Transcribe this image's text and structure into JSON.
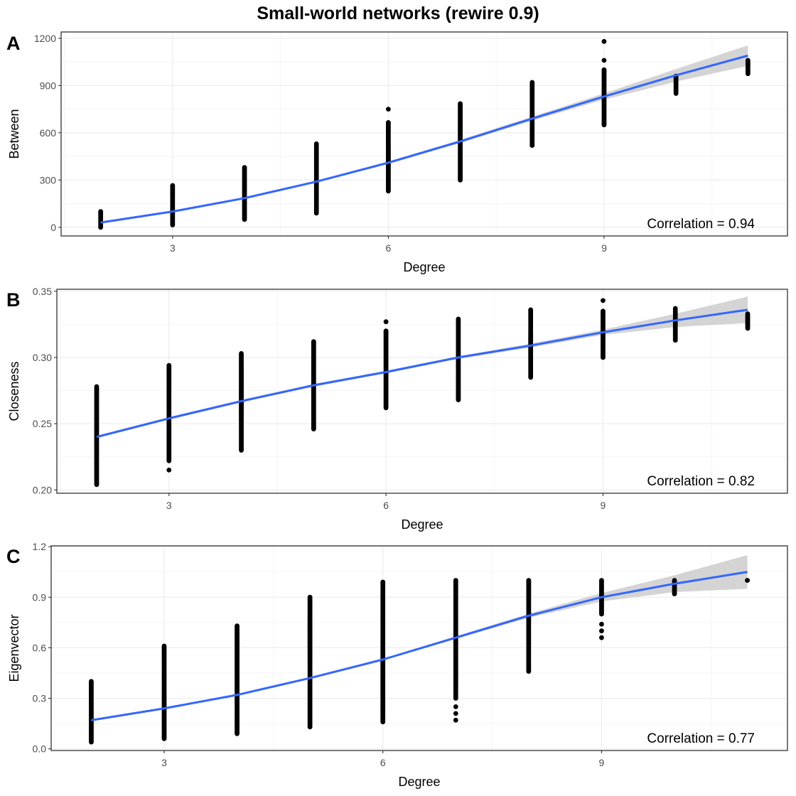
{
  "title": "Small-world networks (rewire 0.9)",
  "chart_data": [
    {
      "type": "scatter",
      "panel_label": "A",
      "xlabel": "Degree",
      "ylabel": "Between",
      "xlim": [
        1.45,
        11.55
      ],
      "ylim": [
        -55,
        1240
      ],
      "x_ticks": [
        3,
        6,
        9
      ],
      "x_tick_labels": [
        "3",
        "6",
        "9"
      ],
      "y_ticks": [
        0,
        300,
        600,
        900,
        1200
      ],
      "y_tick_labels": [
        "0",
        "300",
        "600",
        "900",
        "1200"
      ],
      "grid": true,
      "annotation": "Correlation = 0.94",
      "point_color": "#000000",
      "points": [
        {
          "x": 2,
          "min": 0,
          "max": 100,
          "extra": []
        },
        {
          "x": 3,
          "min": 15,
          "max": 265,
          "extra": []
        },
        {
          "x": 4,
          "min": 50,
          "max": 380,
          "extra": []
        },
        {
          "x": 5,
          "min": 90,
          "max": 530,
          "extra": []
        },
        {
          "x": 6,
          "min": 230,
          "max": 665,
          "extra": [
            750
          ]
        },
        {
          "x": 7,
          "min": 300,
          "max": 785,
          "extra": []
        },
        {
          "x": 8,
          "min": 520,
          "max": 920,
          "extra": []
        },
        {
          "x": 9,
          "min": 650,
          "max": 1000,
          "extra": [
            1060,
            1180
          ]
        },
        {
          "x": 10,
          "min": 850,
          "max": 960,
          "extra": [
            920
          ]
        },
        {
          "x": 11,
          "min": 975,
          "max": 1060,
          "extra": []
        }
      ],
      "fit": {
        "color": "#3366ff",
        "band_color": "#cccccc",
        "x": [
          2,
          3,
          4,
          5,
          6,
          7,
          8,
          9,
          10,
          11
        ],
        "y": [
          30,
          100,
          185,
          290,
          410,
          545,
          690,
          830,
          965,
          1090
        ],
        "band": [
          3,
          4,
          5,
          6,
          8,
          10,
          13,
          20,
          40,
          65
        ]
      }
    },
    {
      "type": "scatter",
      "panel_label": "B",
      "xlabel": "Degree",
      "ylabel": "Closeness",
      "xlim": [
        1.45,
        11.55
      ],
      "ylim": [
        0.1975,
        0.3515
      ],
      "x_ticks": [
        3,
        6,
        9
      ],
      "x_tick_labels": [
        "3",
        "6",
        "9"
      ],
      "y_ticks": [
        0.2,
        0.25,
        0.3,
        0.35
      ],
      "y_tick_labels": [
        "0.20",
        "0.25",
        "0.30",
        "0.35"
      ],
      "grid": true,
      "annotation": "Correlation = 0.82",
      "point_color": "#000000",
      "points": [
        {
          "x": 2,
          "min": 0.204,
          "max": 0.278,
          "extra": []
        },
        {
          "x": 3,
          "min": 0.222,
          "max": 0.294,
          "extra": [
            0.215
          ]
        },
        {
          "x": 4,
          "min": 0.23,
          "max": 0.303,
          "extra": []
        },
        {
          "x": 5,
          "min": 0.246,
          "max": 0.312,
          "extra": []
        },
        {
          "x": 6,
          "min": 0.262,
          "max": 0.32,
          "extra": [
            0.327
          ]
        },
        {
          "x": 7,
          "min": 0.268,
          "max": 0.329,
          "extra": []
        },
        {
          "x": 8,
          "min": 0.285,
          "max": 0.336,
          "extra": []
        },
        {
          "x": 9,
          "min": 0.3,
          "max": 0.335,
          "extra": [
            0.343
          ]
        },
        {
          "x": 10,
          "min": 0.313,
          "max": 0.337,
          "extra": [
            0.329
          ]
        },
        {
          "x": 11,
          "min": 0.322,
          "max": 0.333,
          "extra": []
        }
      ],
      "fit": {
        "color": "#3366ff",
        "band_color": "#cccccc",
        "x": [
          2,
          3,
          4,
          5,
          6,
          7,
          8,
          9,
          10,
          11
        ],
        "y": [
          0.24,
          0.254,
          0.267,
          0.279,
          0.289,
          0.3,
          0.309,
          0.319,
          0.328,
          0.336
        ],
        "band": [
          0.001,
          0.001,
          0.001,
          0.001,
          0.001,
          0.001,
          0.0015,
          0.002,
          0.005,
          0.01
        ]
      }
    },
    {
      "type": "scatter",
      "panel_label": "C",
      "xlabel": "Degree",
      "ylabel": "Eigenvector",
      "xlim": [
        1.45,
        11.55
      ],
      "ylim": [
        -0.01,
        1.205
      ],
      "x_ticks": [
        3,
        6,
        9
      ],
      "x_tick_labels": [
        "3",
        "6",
        "9"
      ],
      "y_ticks": [
        0.0,
        0.3,
        0.6,
        0.9,
        1.2
      ],
      "y_tick_labels": [
        "0.0",
        "0.3",
        "0.6",
        "0.9",
        "1.2"
      ],
      "grid": true,
      "annotation": "Correlation = 0.77",
      "point_color": "#000000",
      "points": [
        {
          "x": 2,
          "min": 0.04,
          "max": 0.4,
          "extra": []
        },
        {
          "x": 3,
          "min": 0.06,
          "max": 0.61,
          "extra": []
        },
        {
          "x": 4,
          "min": 0.09,
          "max": 0.73,
          "extra": []
        },
        {
          "x": 5,
          "min": 0.13,
          "max": 0.9,
          "extra": []
        },
        {
          "x": 6,
          "min": 0.16,
          "max": 0.99,
          "extra": []
        },
        {
          "x": 7,
          "min": 0.3,
          "max": 1.0,
          "extra": [
            0.17,
            0.21,
            0.25
          ]
        },
        {
          "x": 8,
          "min": 0.46,
          "max": 1.0,
          "extra": []
        },
        {
          "x": 9,
          "min": 0.8,
          "max": 1.0,
          "extra": [
            0.66,
            0.7,
            0.74
          ]
        },
        {
          "x": 10,
          "min": 0.92,
          "max": 1.0,
          "extra": []
        },
        {
          "x": 11,
          "min": 1.0,
          "max": 1.0,
          "extra": []
        }
      ],
      "fit": {
        "color": "#3366ff",
        "band_color": "#cccccc",
        "x": [
          2,
          3,
          4,
          5,
          6,
          7,
          8,
          9,
          10,
          11
        ],
        "y": [
          0.17,
          0.24,
          0.32,
          0.42,
          0.53,
          0.66,
          0.79,
          0.9,
          0.98,
          1.05
        ],
        "band": [
          0.005,
          0.005,
          0.005,
          0.005,
          0.006,
          0.008,
          0.012,
          0.025,
          0.05,
          0.1
        ]
      }
    }
  ]
}
